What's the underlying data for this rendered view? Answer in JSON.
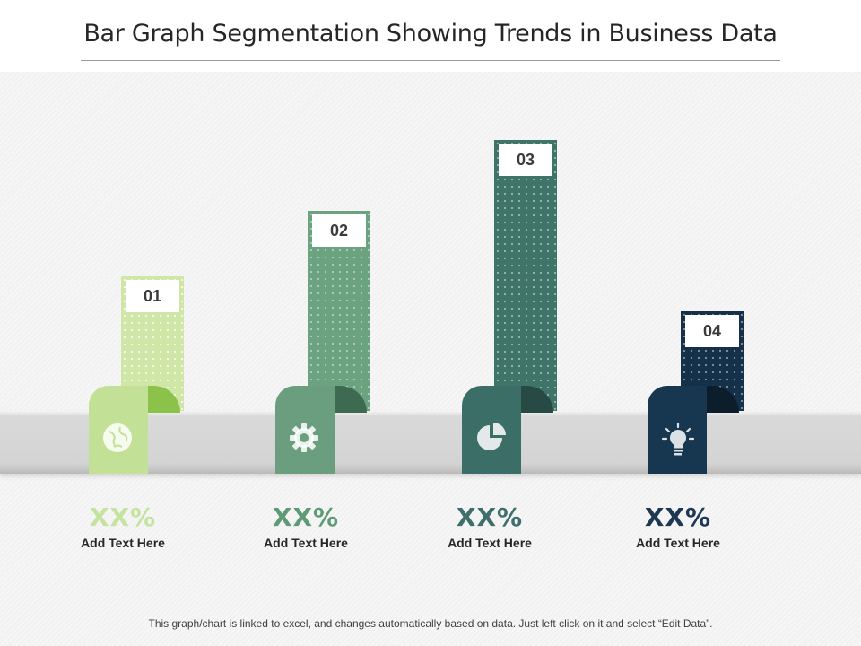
{
  "title": "Bar Graph Segmentation Showing Trends in Business Data",
  "footer": "This graph/chart is linked to excel, and changes automatically based on data. Just left click on it and select “Edit Data”.",
  "chart_data": {
    "type": "bar",
    "title": "Bar Graph Segmentation Showing Trends in Business Data",
    "categories": [
      "01",
      "02",
      "03",
      "04"
    ],
    "values": [
      31,
      46,
      62,
      23
    ],
    "ylim": [
      0,
      65
    ],
    "xlabel": "",
    "ylabel": "",
    "grid": false,
    "items": [
      {
        "label": "01",
        "percent": "XX%",
        "text": "Add Text Here",
        "icon": "globe-icon",
        "bar_color": "#cfe6a7",
        "tab_color": "#c2e196",
        "curl_color": "#8bc34a",
        "pct_color": "#c5e3a0"
      },
      {
        "label": "02",
        "percent": "XX%",
        "text": "Add Text Here",
        "icon": "gear-icon",
        "bar_color": "#6ba381",
        "tab_color": "#6a9e7e",
        "curl_color": "#3e6a52",
        "pct_color": "#5f9a76"
      },
      {
        "label": "03",
        "percent": "XX%",
        "text": "Add Text Here",
        "icon": "pie-chart-icon",
        "bar_color": "#3f7468",
        "tab_color": "#3c6e68",
        "curl_color": "#274a44",
        "pct_color": "#3f6f6a"
      },
      {
        "label": "04",
        "percent": "XX%",
        "text": "Add Text Here",
        "icon": "lightbulb-icon",
        "bar_color": "#153049",
        "tab_color": "#173650",
        "curl_color": "#0c1d2c",
        "pct_color": "#1d3852"
      }
    ]
  }
}
